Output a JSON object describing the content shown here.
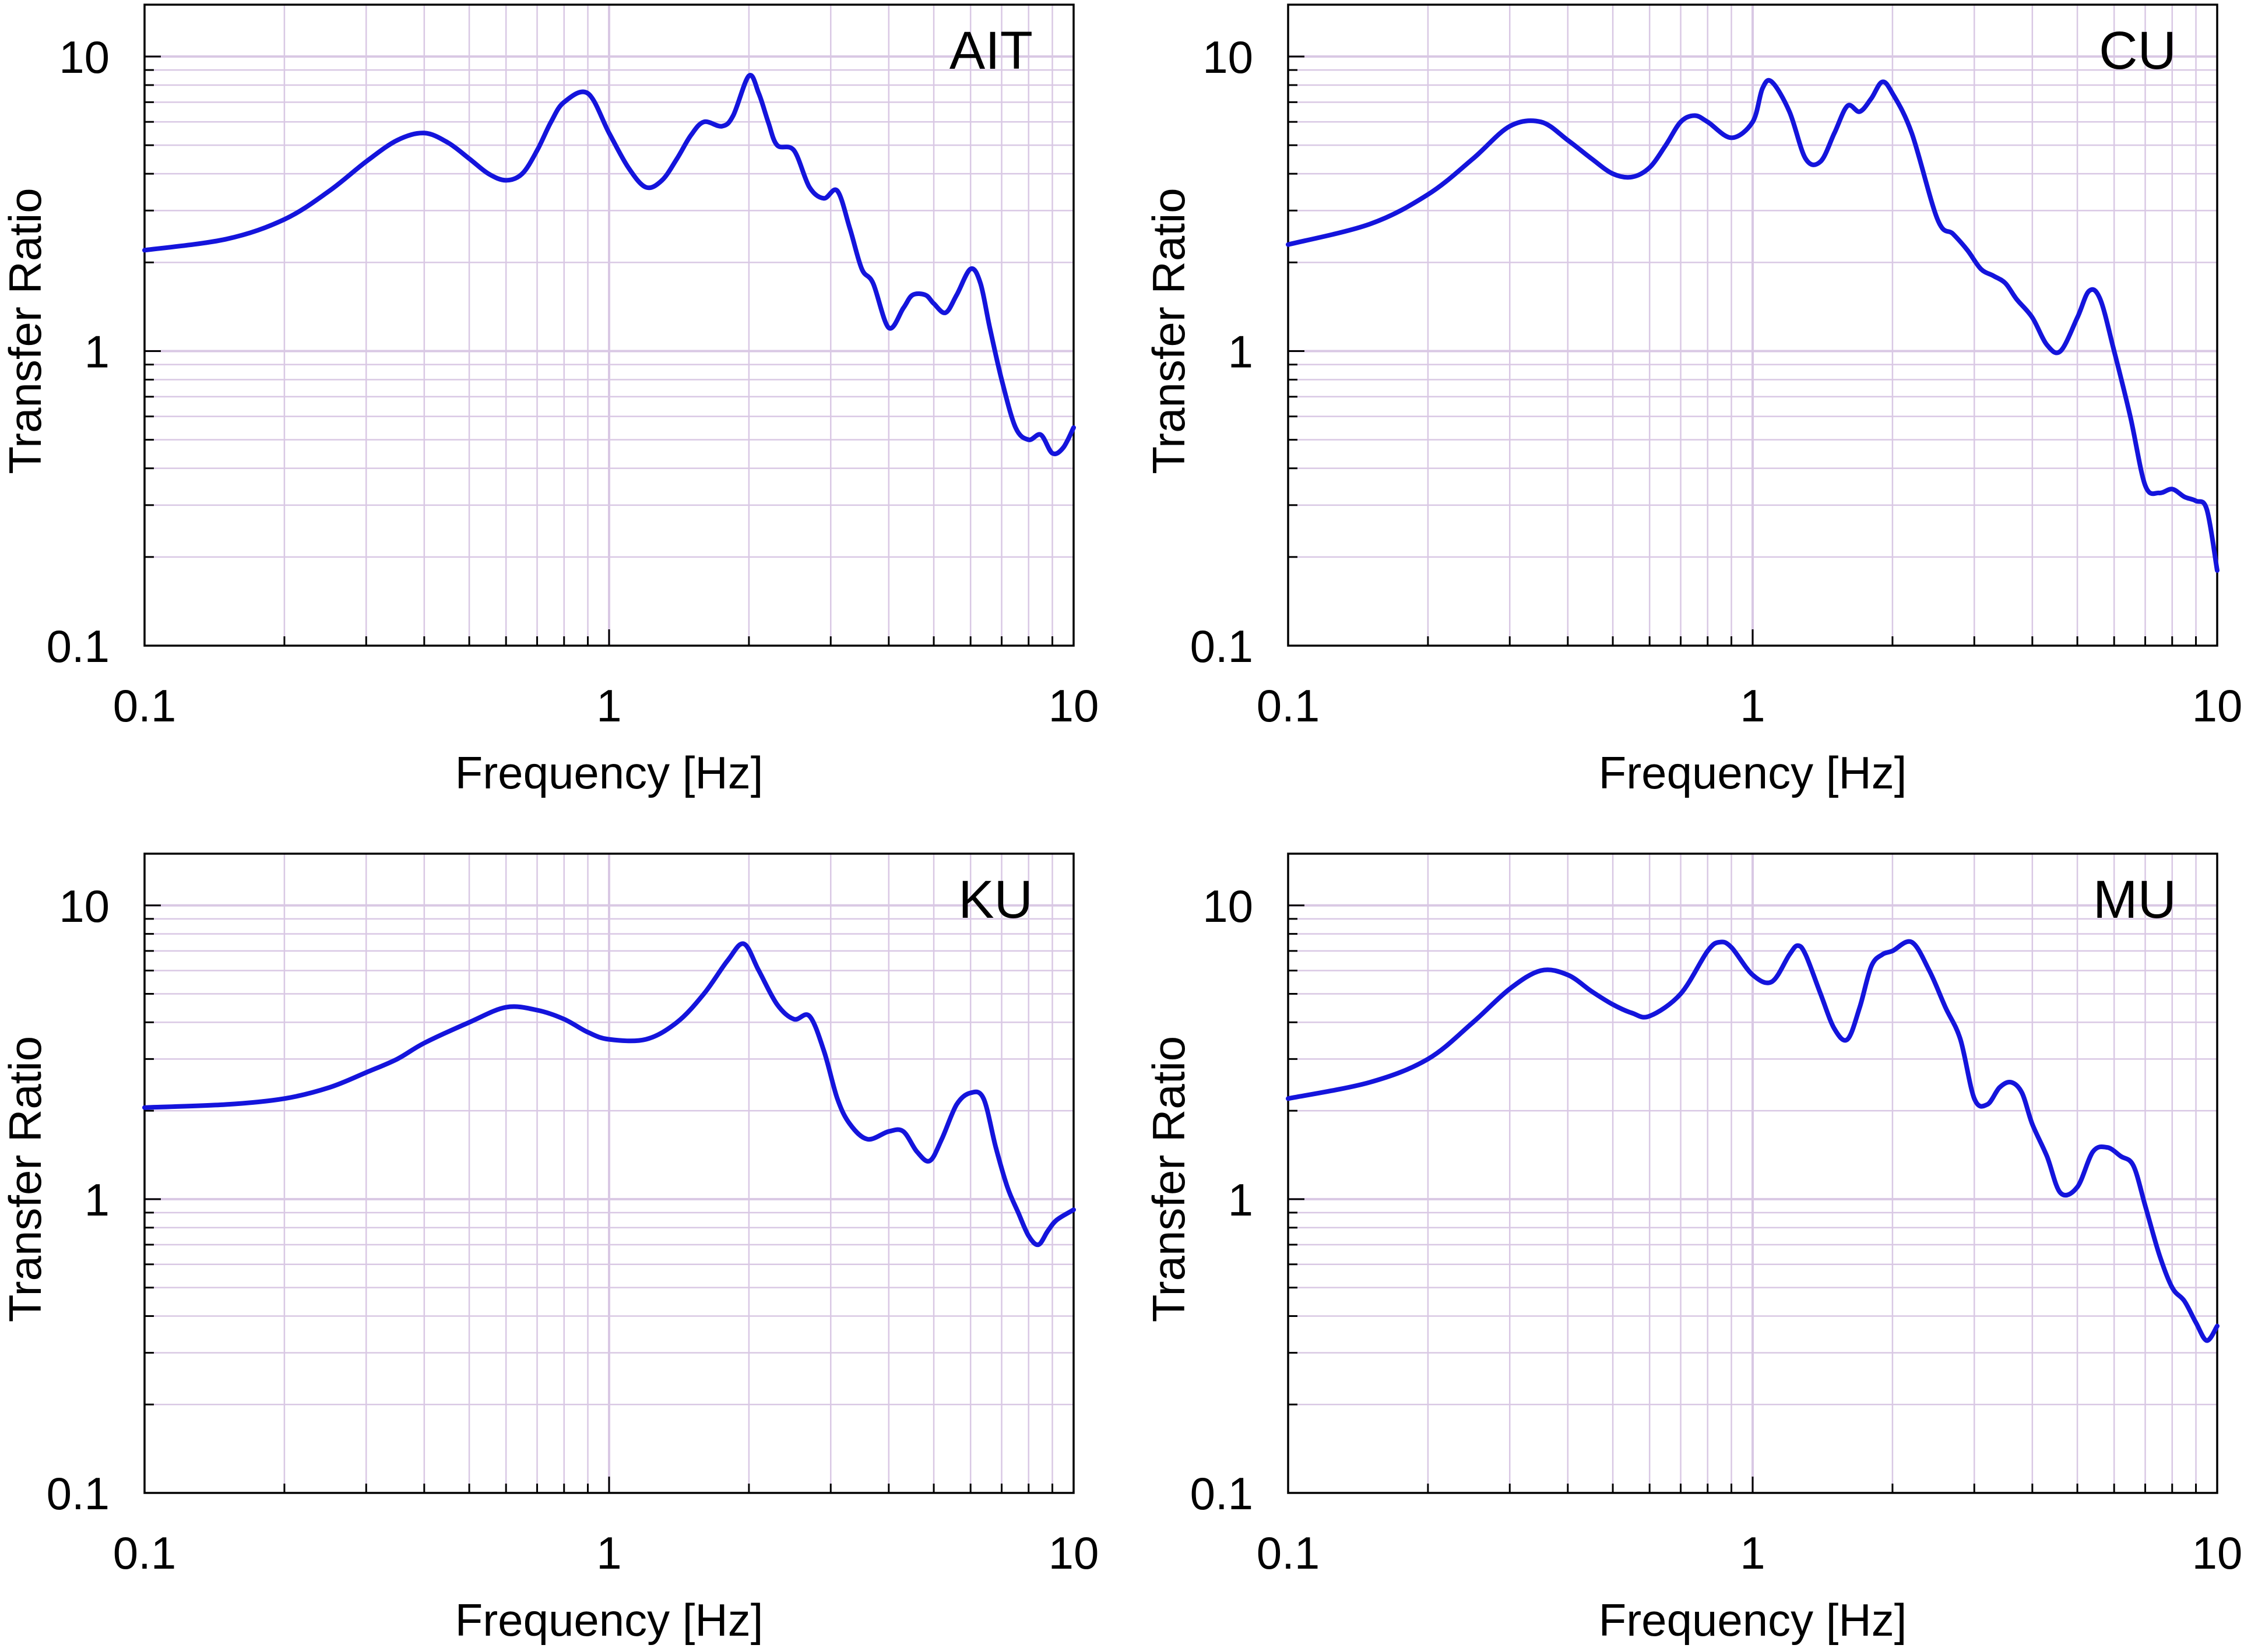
{
  "figure": {
    "background": "#ffffff",
    "grid_color": "#d9c8e4",
    "curve_color": "#1414dc"
  },
  "chart_data": [
    {
      "type": "line",
      "station": "AIT",
      "xscale": "log",
      "yscale": "log",
      "xlim": [
        0.1,
        10
      ],
      "ylim": [
        0.1,
        15
      ],
      "xticks": [
        0.1,
        1,
        10
      ],
      "xtick_labels": [
        "0.1",
        "1",
        "10"
      ],
      "yticks": [
        0.1,
        1,
        10
      ],
      "ytick_labels": [
        "0.1",
        "1",
        "10"
      ],
      "xlabel": "Frequency [Hz]",
      "ylabel": "Transfer Ratio",
      "grid": true,
      "series": [
        {
          "name": "AIT",
          "x": [
            0.1,
            0.15,
            0.2,
            0.25,
            0.3,
            0.35,
            0.4,
            0.45,
            0.5,
            0.55,
            0.6,
            0.65,
            0.7,
            0.75,
            0.8,
            0.9,
            1.0,
            1.1,
            1.2,
            1.3,
            1.4,
            1.5,
            1.6,
            1.75,
            1.85,
            2.0,
            2.1,
            2.2,
            2.3,
            2.5,
            2.7,
            2.9,
            3.1,
            3.3,
            3.5,
            3.7,
            4.0,
            4.3,
            4.5,
            4.8,
            5.0,
            5.3,
            5.6,
            6.0,
            6.3,
            6.6,
            7.0,
            7.5,
            8.0,
            8.5,
            9.0,
            9.5,
            10.0
          ],
          "y": [
            2.2,
            2.4,
            2.8,
            3.5,
            4.4,
            5.2,
            5.5,
            5.1,
            4.5,
            4.0,
            3.8,
            4.0,
            4.8,
            6.0,
            7.0,
            7.5,
            5.5,
            4.2,
            3.6,
            3.8,
            4.5,
            5.4,
            6.0,
            5.8,
            6.3,
            8.6,
            7.5,
            6.0,
            5.0,
            4.8,
            3.6,
            3.3,
            3.5,
            2.6,
            1.9,
            1.7,
            1.2,
            1.4,
            1.55,
            1.55,
            1.45,
            1.35,
            1.55,
            1.9,
            1.7,
            1.2,
            0.8,
            0.55,
            0.5,
            0.52,
            0.45,
            0.47,
            0.55
          ]
        }
      ]
    },
    {
      "type": "line",
      "station": "CU",
      "xscale": "log",
      "yscale": "log",
      "xlim": [
        0.1,
        10
      ],
      "ylim": [
        0.1,
        15
      ],
      "xticks": [
        0.1,
        1,
        10
      ],
      "xtick_labels": [
        "0.1",
        "1",
        "10"
      ],
      "yticks": [
        0.1,
        1,
        10
      ],
      "ytick_labels": [
        "0.1",
        "1",
        "10"
      ],
      "xlabel": "Frequency [Hz]",
      "ylabel": "Transfer Ratio",
      "grid": true,
      "series": [
        {
          "name": "CU",
          "x": [
            0.1,
            0.15,
            0.2,
            0.25,
            0.3,
            0.35,
            0.4,
            0.45,
            0.5,
            0.55,
            0.6,
            0.65,
            0.7,
            0.75,
            0.8,
            0.9,
            1.0,
            1.05,
            1.1,
            1.2,
            1.3,
            1.4,
            1.5,
            1.6,
            1.7,
            1.8,
            1.9,
            2.0,
            2.2,
            2.5,
            2.7,
            2.9,
            3.1,
            3.3,
            3.5,
            3.7,
            4.0,
            4.3,
            4.6,
            5.0,
            5.3,
            5.6,
            6.0,
            6.5,
            7.0,
            7.5,
            8.0,
            8.5,
            9.0,
            9.5,
            10.0
          ],
          "y": [
            2.3,
            2.7,
            3.4,
            4.5,
            5.8,
            6.0,
            5.2,
            4.5,
            4.0,
            3.9,
            4.2,
            5.0,
            6.0,
            6.3,
            6.0,
            5.3,
            6.0,
            7.8,
            8.2,
            6.5,
            4.5,
            4.4,
            5.5,
            6.8,
            6.5,
            7.2,
            8.2,
            7.5,
            5.5,
            2.8,
            2.5,
            2.2,
            1.9,
            1.8,
            1.7,
            1.5,
            1.3,
            1.05,
            1.0,
            1.3,
            1.6,
            1.5,
            1.0,
            0.6,
            0.35,
            0.33,
            0.34,
            0.32,
            0.31,
            0.29,
            0.18
          ]
        }
      ]
    },
    {
      "type": "line",
      "station": "KU",
      "xscale": "log",
      "yscale": "log",
      "xlim": [
        0.1,
        10
      ],
      "ylim": [
        0.1,
        15
      ],
      "xticks": [
        0.1,
        1,
        10
      ],
      "xtick_labels": [
        "0.1",
        "1",
        "10"
      ],
      "yticks": [
        0.1,
        1,
        10
      ],
      "ytick_labels": [
        "0.1",
        "1",
        "10"
      ],
      "xlabel": "Frequency [Hz]",
      "ylabel": "Transfer Ratio",
      "grid": true,
      "series": [
        {
          "name": "KU",
          "x": [
            0.1,
            0.15,
            0.2,
            0.25,
            0.3,
            0.35,
            0.4,
            0.5,
            0.6,
            0.7,
            0.8,
            0.9,
            1.0,
            1.2,
            1.4,
            1.6,
            1.8,
            1.95,
            2.1,
            2.3,
            2.5,
            2.7,
            2.9,
            3.1,
            3.3,
            3.6,
            4.0,
            4.3,
            4.6,
            4.9,
            5.2,
            5.6,
            6.0,
            6.4,
            6.8,
            7.2,
            7.6,
            8.0,
            8.4,
            8.8,
            9.2,
            10.0
          ],
          "y": [
            2.05,
            2.1,
            2.2,
            2.4,
            2.7,
            3.0,
            3.4,
            4.0,
            4.5,
            4.4,
            4.1,
            3.7,
            3.5,
            3.5,
            4.0,
            5.0,
            6.5,
            7.4,
            6.0,
            4.6,
            4.1,
            4.2,
            3.2,
            2.2,
            1.8,
            1.6,
            1.7,
            1.7,
            1.45,
            1.35,
            1.6,
            2.1,
            2.3,
            2.2,
            1.5,
            1.1,
            0.9,
            0.75,
            0.7,
            0.78,
            0.85,
            0.92
          ]
        }
      ]
    },
    {
      "type": "line",
      "station": "MU",
      "xscale": "log",
      "yscale": "log",
      "xlim": [
        0.1,
        10
      ],
      "ylim": [
        0.1,
        15
      ],
      "xticks": [
        0.1,
        1,
        10
      ],
      "xtick_labels": [
        "0.1",
        "1",
        "10"
      ],
      "yticks": [
        0.1,
        1,
        10
      ],
      "ytick_labels": [
        "0.1",
        "1",
        "10"
      ],
      "xlabel": "Frequency [Hz]",
      "ylabel": "Transfer Ratio",
      "grid": true,
      "series": [
        {
          "name": "MU",
          "x": [
            0.1,
            0.15,
            0.2,
            0.25,
            0.3,
            0.35,
            0.4,
            0.45,
            0.5,
            0.55,
            0.6,
            0.7,
            0.8,
            0.85,
            0.9,
            1.0,
            1.1,
            1.2,
            1.25,
            1.3,
            1.4,
            1.5,
            1.6,
            1.7,
            1.8,
            1.9,
            2.0,
            2.2,
            2.4,
            2.6,
            2.8,
            3.0,
            3.2,
            3.4,
            3.6,
            3.8,
            4.0,
            4.3,
            4.6,
            5.0,
            5.4,
            5.8,
            6.2,
            6.6,
            7.0,
            7.5,
            8.0,
            8.5,
            9.0,
            9.5,
            10.0
          ],
          "y": [
            2.2,
            2.5,
            3.0,
            4.0,
            5.2,
            6.0,
            5.8,
            5.1,
            4.6,
            4.3,
            4.2,
            5.0,
            7.0,
            7.5,
            7.2,
            5.8,
            5.5,
            6.8,
            7.3,
            6.8,
            5.0,
            3.8,
            3.5,
            4.5,
            6.2,
            6.8,
            7.0,
            7.5,
            6.0,
            4.5,
            3.5,
            2.2,
            2.1,
            2.4,
            2.5,
            2.3,
            1.8,
            1.4,
            1.05,
            1.1,
            1.45,
            1.5,
            1.4,
            1.3,
            0.95,
            0.65,
            0.5,
            0.45,
            0.38,
            0.33,
            0.37
          ]
        }
      ]
    }
  ]
}
